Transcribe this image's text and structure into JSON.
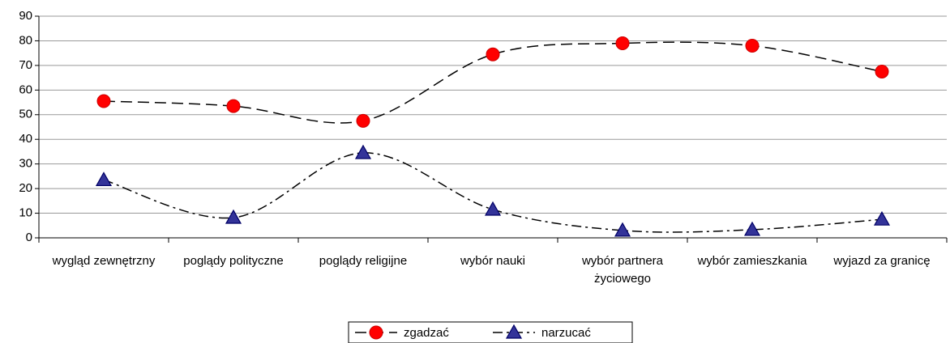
{
  "chart_data": {
    "type": "line",
    "categories": [
      "wygląd zewnętrzny",
      "poglądy polityczne",
      "poglądy religijne",
      "wybór nauki",
      "wybór partnera życiowego",
      "wybór zamieszkania",
      "wyjazd za granicę"
    ],
    "series": [
      {
        "name": "zgadzać",
        "color": "#ff0000",
        "marker": "circle",
        "values": [
          55.5,
          53.5,
          47.5,
          74.5,
          79,
          78,
          67.5
        ]
      },
      {
        "name": "narzucać",
        "color": "#333399",
        "marker": "triangle",
        "values": [
          23.5,
          8.2,
          34.5,
          11.5,
          3,
          3.3,
          7.5
        ]
      }
    ],
    "ylim": [
      0,
      90
    ],
    "yticks": [
      0,
      10,
      20,
      30,
      40,
      50,
      60,
      70,
      80,
      90
    ],
    "grid": true,
    "legend": "bottom"
  }
}
